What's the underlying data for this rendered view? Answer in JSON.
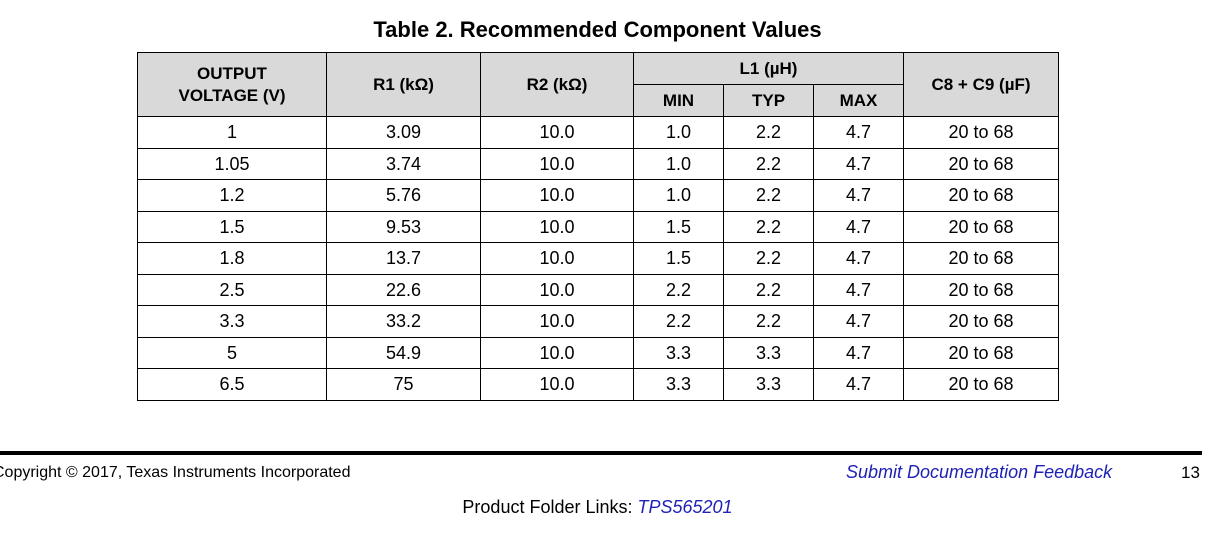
{
  "table": {
    "title": "Table 2. Recommended Component Values",
    "headers": {
      "output_voltage": "OUTPUT VOLTAGE (V)",
      "r1": "R1 (kΩ)",
      "r2": "R2 (kΩ)",
      "l1": "L1 (µH)",
      "min": "MIN",
      "typ": "TYP",
      "max": "MAX",
      "c8c9": "C8 + C9 (µF)"
    },
    "rows": [
      {
        "vout": "1",
        "r1": "3.09",
        "r2": "10.0",
        "min": "1.0",
        "typ": "2.2",
        "max": "4.7",
        "c": "20 to 68"
      },
      {
        "vout": "1.05",
        "r1": "3.74",
        "r2": "10.0",
        "min": "1.0",
        "typ": "2.2",
        "max": "4.7",
        "c": "20 to 68"
      },
      {
        "vout": "1.2",
        "r1": "5.76",
        "r2": "10.0",
        "min": "1.0",
        "typ": "2.2",
        "max": "4.7",
        "c": "20 to 68"
      },
      {
        "vout": "1.5",
        "r1": "9.53",
        "r2": "10.0",
        "min": "1.5",
        "typ": "2.2",
        "max": "4.7",
        "c": "20 to 68"
      },
      {
        "vout": "1.8",
        "r1": "13.7",
        "r2": "10.0",
        "min": "1.5",
        "typ": "2.2",
        "max": "4.7",
        "c": "20 to 68"
      },
      {
        "vout": "2.5",
        "r1": "22.6",
        "r2": "10.0",
        "min": "2.2",
        "typ": "2.2",
        "max": "4.7",
        "c": "20 to 68"
      },
      {
        "vout": "3.3",
        "r1": "33.2",
        "r2": "10.0",
        "min": "2.2",
        "typ": "2.2",
        "max": "4.7",
        "c": "20 to 68"
      },
      {
        "vout": "5",
        "r1": "54.9",
        "r2": "10.0",
        "min": "3.3",
        "typ": "3.3",
        "max": "4.7",
        "c": "20 to 68"
      },
      {
        "vout": "6.5",
        "r1": "75",
        "r2": "10.0",
        "min": "3.3",
        "typ": "3.3",
        "max": "4.7",
        "c": "20 to 68"
      }
    ]
  },
  "footer": {
    "copyright": "Copyright © 2017, Texas Instruments Incorporated",
    "feedback_link": "Submit Documentation Feedback",
    "page_number": "13",
    "folder_links_label": "Product Folder Links: ",
    "folder_link": "TPS565201"
  }
}
